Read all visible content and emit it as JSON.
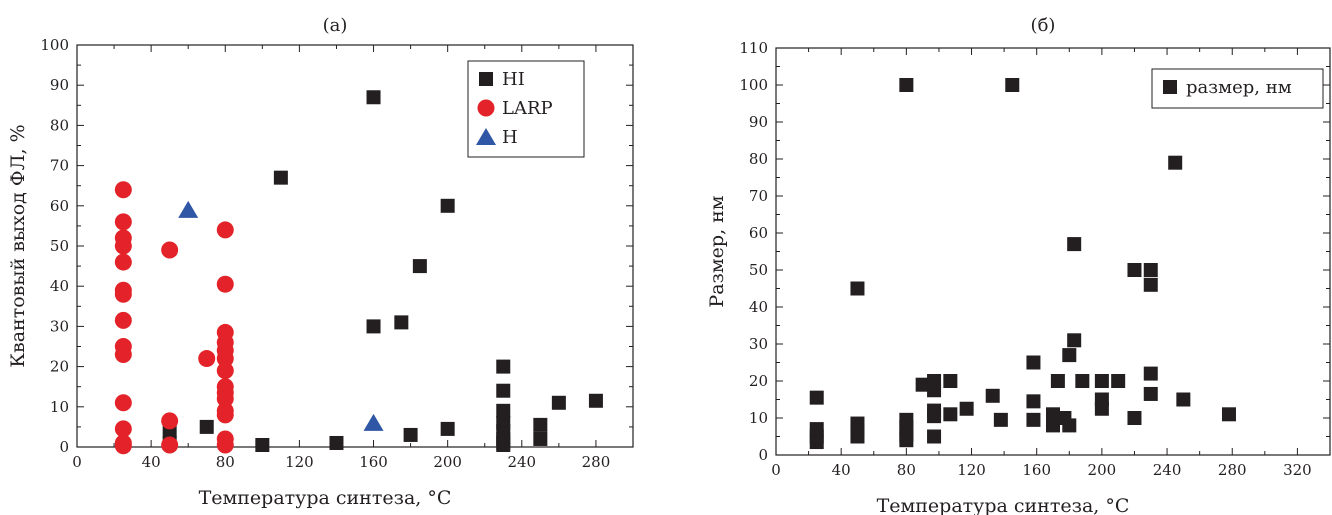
{
  "colors": {
    "HI": "#231f20",
    "LARP": "#e32329",
    "H": "#2f57a6",
    "size": "#231f20",
    "axis": "#231f20"
  },
  "icons": {
    "HI": "square-marker",
    "LARP": "circle-marker",
    "H": "triangle-marker",
    "size": "square-marker"
  },
  "chart_data": [
    {
      "type": "scatter",
      "title": "(а)",
      "xlabel": "Температура синтеза, °C",
      "ylabel": "Квантовый выход ФЛ, %",
      "xlim": [
        0,
        300
      ],
      "ylim": [
        0,
        100
      ],
      "xticks": [
        0,
        40,
        80,
        120,
        160,
        200,
        240,
        280
      ],
      "yticks": [
        0,
        10,
        20,
        30,
        40,
        50,
        60,
        70,
        80,
        90,
        100
      ],
      "grid": false,
      "legend_position": "top-right",
      "series": [
        {
          "name": "HI",
          "points": [
            [
              50,
              1
            ],
            [
              50,
              4
            ],
            [
              70,
              5
            ],
            [
              100,
              0.5
            ],
            [
              110,
              67
            ],
            [
              140,
              1
            ],
            [
              160,
              87
            ],
            [
              160,
              30
            ],
            [
              175,
              31
            ],
            [
              180,
              3
            ],
            [
              185,
              45
            ],
            [
              200,
              60
            ],
            [
              200,
              4.5
            ],
            [
              230,
              20
            ],
            [
              230,
              14
            ],
            [
              230,
              9
            ],
            [
              230,
              6
            ],
            [
              230,
              4
            ],
            [
              230,
              2
            ],
            [
              230,
              1
            ],
            [
              230,
              0.5
            ],
            [
              250,
              5.5
            ],
            [
              250,
              2
            ],
            [
              260,
              11
            ],
            [
              280,
              11.5
            ]
          ]
        },
        {
          "name": "LARP",
          "points": [
            [
              25,
              64
            ],
            [
              25,
              56
            ],
            [
              25,
              52
            ],
            [
              25,
              50
            ],
            [
              25,
              46
            ],
            [
              25,
              39
            ],
            [
              25,
              38
            ],
            [
              25,
              31.5
            ],
            [
              25,
              25
            ],
            [
              25,
              23
            ],
            [
              25,
              11
            ],
            [
              25,
              4.5
            ],
            [
              25,
              1
            ],
            [
              25,
              0.3
            ],
            [
              50,
              49
            ],
            [
              50,
              6.5
            ],
            [
              50,
              0.5
            ],
            [
              70,
              22
            ],
            [
              80,
              54
            ],
            [
              80,
              40.5
            ],
            [
              80,
              28.5
            ],
            [
              80,
              26
            ],
            [
              80,
              24
            ],
            [
              80,
              22
            ],
            [
              80,
              19
            ],
            [
              80,
              15
            ],
            [
              80,
              13.5
            ],
            [
              80,
              12
            ],
            [
              80,
              9
            ],
            [
              80,
              8
            ],
            [
              80,
              2
            ],
            [
              80,
              0.5
            ]
          ]
        },
        {
          "name": "H",
          "points": [
            [
              60,
              59
            ],
            [
              160,
              6
            ]
          ]
        }
      ]
    },
    {
      "type": "scatter",
      "title": "(б)",
      "xlabel": "Температура синтеза, °C",
      "ylabel": "Размер, нм",
      "xlim": [
        0,
        340
      ],
      "ylim": [
        0,
        110
      ],
      "xticks": [
        0,
        40,
        80,
        120,
        160,
        200,
        240,
        280,
        320
      ],
      "yticks": [
        0,
        10,
        20,
        30,
        40,
        50,
        60,
        70,
        80,
        90,
        100,
        110
      ],
      "grid": false,
      "legend_position": "top-right",
      "series": [
        {
          "name": "размер, нм",
          "points": [
            [
              25,
              15.5
            ],
            [
              25,
              7
            ],
            [
              25,
              5
            ],
            [
              25,
              3.5
            ],
            [
              50,
              45
            ],
            [
              50,
              8.5
            ],
            [
              50,
              6.5
            ],
            [
              50,
              5
            ],
            [
              80,
              100
            ],
            [
              80,
              9.5
            ],
            [
              80,
              7.5
            ],
            [
              80,
              5.5
            ],
            [
              80,
              4
            ],
            [
              90,
              19
            ],
            [
              97,
              20
            ],
            [
              97,
              17.5
            ],
            [
              97,
              12
            ],
            [
              97,
              10.5
            ],
            [
              97,
              5
            ],
            [
              107,
              20
            ],
            [
              107,
              11
            ],
            [
              117,
              12.5
            ],
            [
              133,
              16
            ],
            [
              138,
              9.5
            ],
            [
              145,
              100
            ],
            [
              158,
              25
            ],
            [
              158,
              14.5
            ],
            [
              158,
              9.5
            ],
            [
              170,
              11
            ],
            [
              170,
              8
            ],
            [
              173,
              20
            ],
            [
              177,
              10
            ],
            [
              180,
              27
            ],
            [
              180,
              8
            ],
            [
              183,
              57
            ],
            [
              183,
              31
            ],
            [
              188,
              20
            ],
            [
              200,
              20
            ],
            [
              200,
              15
            ],
            [
              200,
              12.5
            ],
            [
              210,
              20
            ],
            [
              220,
              50
            ],
            [
              220,
              10
            ],
            [
              230,
              50
            ],
            [
              230,
              46
            ],
            [
              230,
              22
            ],
            [
              230,
              16.5
            ],
            [
              245,
              79
            ],
            [
              250,
              15
            ],
            [
              278,
              11
            ]
          ]
        }
      ]
    }
  ]
}
